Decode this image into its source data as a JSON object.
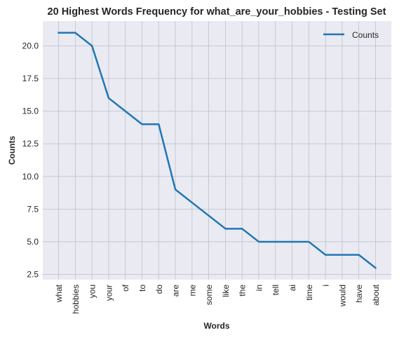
{
  "chart_data": {
    "type": "line",
    "title": "20 Highest Words Frequency for what_are_your_hobbies - Testing Set",
    "xlabel": "Words",
    "ylabel": "Counts",
    "categories": [
      "what",
      "hobbies",
      "you",
      "your",
      "of",
      "to",
      "do",
      "are",
      "me",
      "some",
      "like",
      "the",
      "in",
      "tell",
      "ai",
      "time",
      "i",
      "would",
      "have",
      "about"
    ],
    "series": [
      {
        "name": "Counts",
        "values": [
          21,
          21,
          20,
          16,
          15,
          14,
          14,
          9,
          8,
          7,
          6,
          6,
          5,
          5,
          5,
          5,
          4,
          4,
          4,
          3
        ]
      }
    ],
    "ylim": [
      2.1,
      21.9
    ],
    "yticks": [
      "2.5",
      "5.0",
      "7.5",
      "10.0",
      "12.5",
      "15.0",
      "17.5",
      "20.0"
    ],
    "grid": true,
    "legend": "top-right",
    "colors": {
      "line": "#1f77b4",
      "plot_background": "#eaeaf2",
      "grid": "#c0c0c8",
      "text": "#262626"
    }
  }
}
